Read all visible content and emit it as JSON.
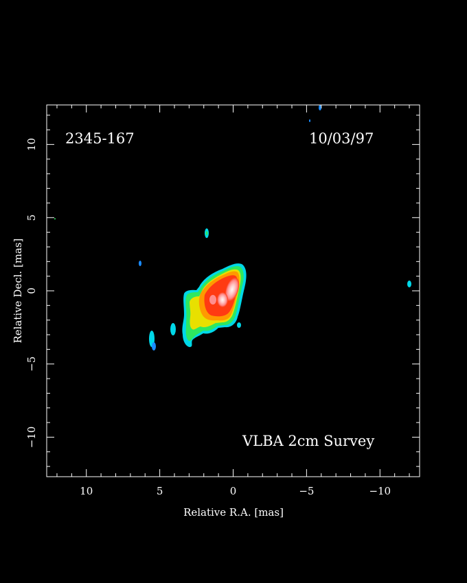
{
  "figure": {
    "source_name": "2345-167",
    "epoch": "10/03/97",
    "survey": "VLBA 2cm Survey",
    "xlabel": "Relative R.A. [mas]",
    "ylabel": "Relative Decl. [mas]",
    "xlim": [
      12.7,
      -12.7
    ],
    "ylim": [
      -12.7,
      12.7
    ],
    "x_ticks": [
      10,
      5,
      0,
      -5,
      -10
    ],
    "x_tick_labels": [
      "10",
      "5",
      "0",
      "−5",
      "−10"
    ],
    "y_ticks": [
      10,
      5,
      0,
      -5,
      -10
    ],
    "y_tick_labels": [
      "10",
      "5",
      "0",
      "−5",
      "−10"
    ],
    "minor_tick_step": 1,
    "colors": {
      "background": "#000000",
      "frame": "#ffffff",
      "cyan": "#00d8e8",
      "blue": "#1a8cff",
      "green": "#2ee860",
      "yellow": "#e8e000",
      "orange": "#ff9a00",
      "red": "#ff3a12",
      "pink": "#ffb0b0",
      "white": "#fff0f0"
    }
  }
}
